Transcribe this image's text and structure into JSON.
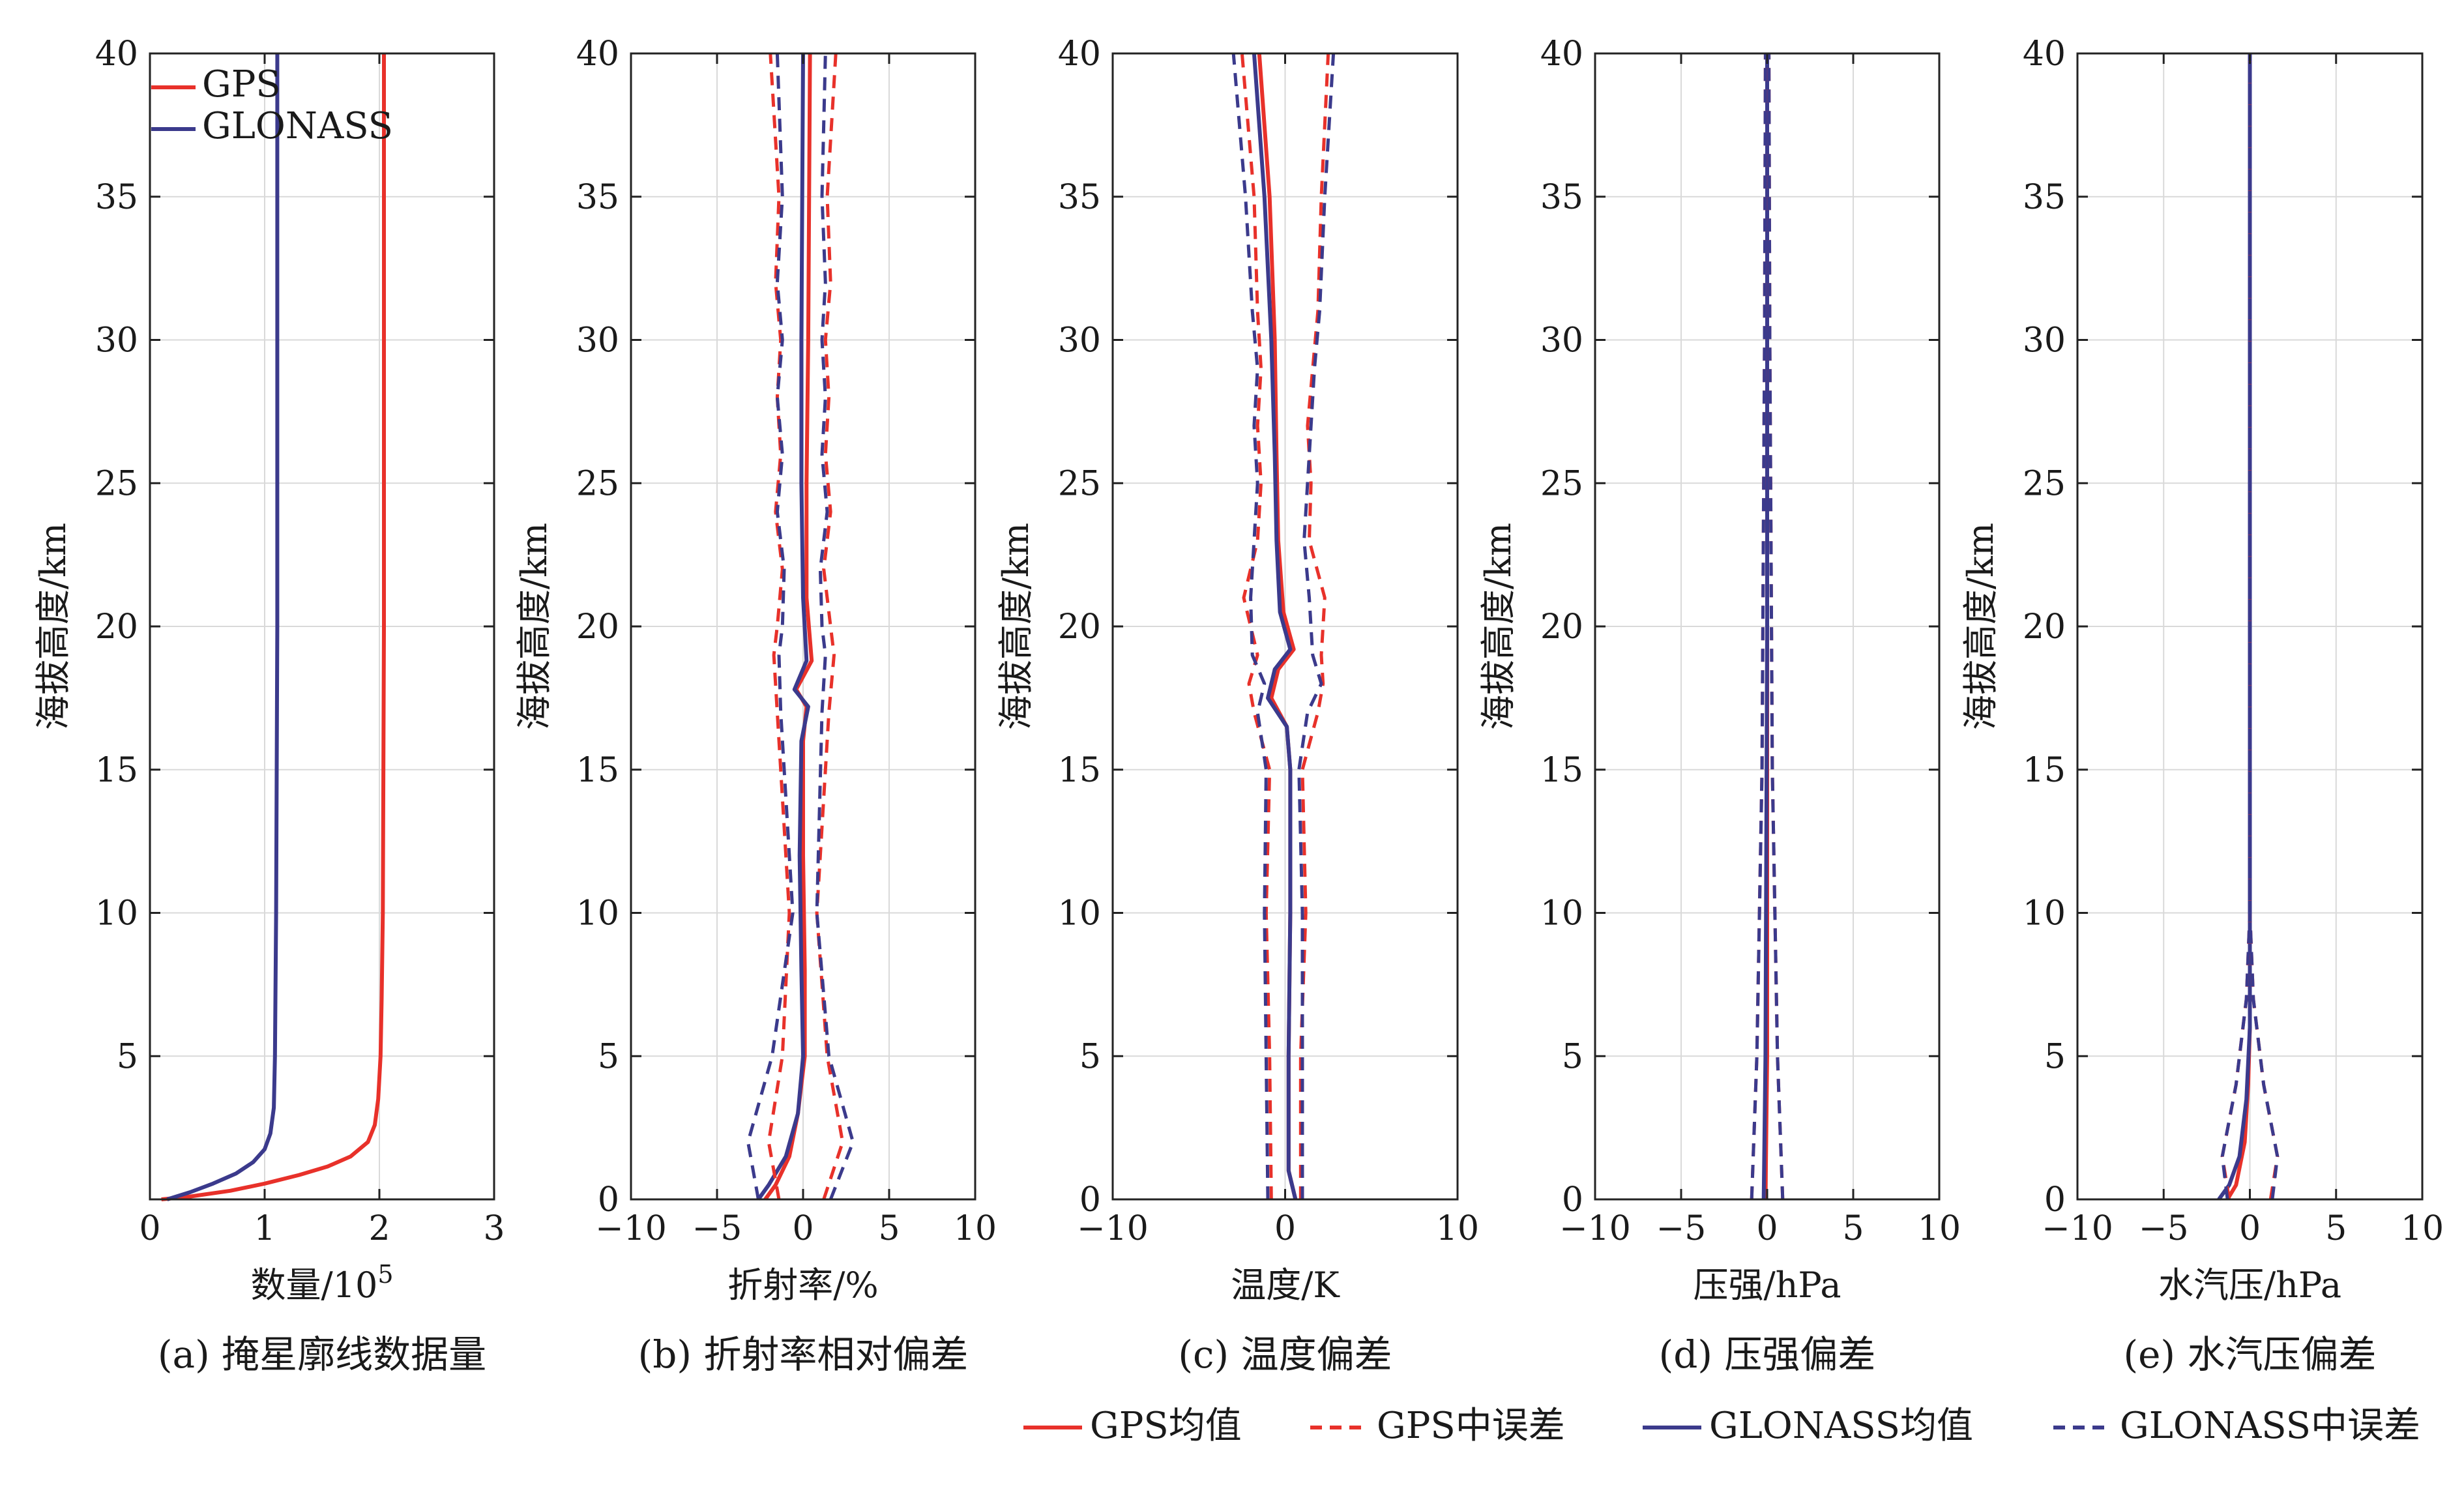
{
  "figure": {
    "colors": {
      "gps": "#e8312a",
      "glonass": "#3b3a8c"
    }
  },
  "legend": {
    "items": [
      {
        "label": "GPS均值",
        "series": "gps",
        "dash": false
      },
      {
        "label": "GPS中误差",
        "series": "gps",
        "dash": true
      },
      {
        "label": "GLONASS均值",
        "series": "glonass",
        "dash": false
      },
      {
        "label": "GLONASS中误差",
        "series": "glonass",
        "dash": true
      }
    ]
  },
  "chart_data": [
    {
      "id": "a",
      "type": "line",
      "caption": "(a) 掩星廓线数据量",
      "xlabel": "数量/10",
      "xlabel_sup": "5",
      "ylabel": "海拔高度/km",
      "xlim": [
        0,
        3
      ],
      "ylim": [
        0,
        40
      ],
      "xticks": [
        0,
        1,
        2,
        3
      ],
      "yticks": [
        5,
        10,
        15,
        20,
        25,
        30,
        35,
        40
      ],
      "inner_legend": [
        "GPS",
        "GLONASS"
      ],
      "series": [
        {
          "name": "GPS",
          "color_key": "gps",
          "dash": false,
          "x": [
            0.1,
            0.35,
            0.7,
            1.0,
            1.3,
            1.55,
            1.75,
            1.9,
            1.96,
            1.99,
            2.01,
            2.02,
            2.03,
            2.04,
            2.04
          ],
          "y": [
            0,
            0.1,
            0.3,
            0.55,
            0.85,
            1.15,
            1.5,
            2.0,
            2.6,
            3.5,
            5,
            7,
            10,
            20,
            40
          ]
        },
        {
          "name": "GLONASS",
          "color_key": "glonass",
          "dash": false,
          "x": [
            0.15,
            0.35,
            0.55,
            0.75,
            0.9,
            1.0,
            1.05,
            1.08,
            1.09,
            1.1,
            1.11,
            1.11
          ],
          "y": [
            0,
            0.25,
            0.55,
            0.9,
            1.3,
            1.75,
            2.3,
            3.2,
            5,
            10,
            20,
            40
          ]
        }
      ]
    },
    {
      "id": "b",
      "type": "line",
      "caption": "(b) 折射率相对偏差",
      "xlabel": "折射率/%",
      "ylabel": "海拔高度/km",
      "xlim": [
        -10,
        10
      ],
      "ylim": [
        0,
        40
      ],
      "xticks": [
        -10,
        -5,
        0,
        5,
        10
      ],
      "yticks": [
        0,
        5,
        10,
        15,
        20,
        25,
        30,
        35,
        40
      ],
      "series": [
        {
          "name": "GPS均值",
          "color_key": "gps",
          "dash": false,
          "x": [
            -2.2,
            -1.6,
            -0.8,
            -0.3,
            0.1,
            0.1,
            0,
            0,
            0.2,
            -0.4,
            0.5,
            0.2,
            0.2,
            0.3,
            0.4
          ],
          "y": [
            0,
            0.5,
            1.5,
            3,
            5,
            8,
            12,
            16,
            17.2,
            17.8,
            18.8,
            21,
            25,
            30,
            40
          ]
        },
        {
          "name": "GLONASS均值",
          "color_key": "glonass",
          "dash": false,
          "x": [
            -2.6,
            -2.0,
            -1.0,
            -0.3,
            0,
            -0.1,
            -0.2,
            -0.1,
            0.3,
            -0.5,
            0.2,
            0,
            -0.1,
            -0.1,
            0
          ],
          "y": [
            0,
            0.5,
            1.5,
            3,
            5,
            8,
            12,
            16,
            17.2,
            17.8,
            18.8,
            21,
            25,
            30,
            40
          ]
        },
        {
          "name": "GPS中误差",
          "color_key": "gps",
          "dash": true,
          "x": [
            -1.4,
            -2.0,
            -1.2,
            -0.8,
            -1.5,
            -1.7,
            -1.5,
            -1.2,
            -1.6,
            -1.3,
            -1.5,
            -1.3,
            -1.6,
            -1.4,
            -1.9
          ],
          "y": [
            0,
            2,
            5,
            10,
            17,
            19,
            20,
            22,
            24,
            26,
            28,
            30,
            32,
            35,
            40
          ]
        },
        {
          "name": "GPS中误差",
          "color_key": "gps",
          "dash": true,
          "x": [
            1.2,
            2.3,
            1.4,
            0.8,
            1.5,
            1.8,
            1.6,
            1.2,
            1.6,
            1.3,
            1.5,
            1.3,
            1.6,
            1.4,
            1.9
          ],
          "y": [
            0,
            2,
            5,
            10,
            17,
            19,
            20,
            22,
            24,
            26,
            28,
            30,
            32,
            35,
            40
          ]
        },
        {
          "name": "GLONASS中误差",
          "color_key": "glonass",
          "dash": true,
          "x": [
            -2.6,
            -3.2,
            -1.8,
            -0.6,
            -1.3,
            -1.4,
            -1.2,
            -1.1,
            -1.5,
            -1.2,
            -1.5,
            -1.2,
            -1.5,
            -1.2,
            -1.5
          ],
          "y": [
            0,
            2,
            5,
            10,
            17,
            19,
            20,
            22,
            24,
            26,
            28,
            30,
            32,
            35,
            40
          ]
        },
        {
          "name": "GLONASS中误差",
          "color_key": "glonass",
          "dash": true,
          "x": [
            1.6,
            2.9,
            1.5,
            0.8,
            1.1,
            1.3,
            1.1,
            1.0,
            1.4,
            1.1,
            1.3,
            1.1,
            1.3,
            1.1,
            1.3
          ],
          "y": [
            0,
            2,
            5,
            10,
            17,
            19,
            20,
            22,
            24,
            26,
            28,
            30,
            32,
            35,
            40
          ]
        }
      ]
    },
    {
      "id": "c",
      "type": "line",
      "caption": "(c) 温度偏差",
      "xlabel": "温度/K",
      "ylabel": "海拔高度/km",
      "xlim": [
        -10,
        10
      ],
      "ylim": [
        0,
        40
      ],
      "xticks": [
        -10,
        0,
        10
      ],
      "yticks": [
        0,
        5,
        10,
        15,
        20,
        25,
        30,
        35,
        40
      ],
      "series": [
        {
          "name": "GPS均值",
          "color_key": "gps",
          "dash": false,
          "x": [
            0.6,
            0.2,
            0.2,
            0.3,
            0.3,
            0.1,
            -0.8,
            -0.4,
            0.5,
            -0.1,
            -0.4,
            -0.5,
            -0.6,
            -0.9,
            -1.5
          ],
          "y": [
            0,
            1,
            5,
            10,
            15,
            16.5,
            17.5,
            18.5,
            19.2,
            20.5,
            23,
            26,
            30,
            35,
            40
          ]
        },
        {
          "name": "GLONASS均值",
          "color_key": "glonass",
          "dash": false,
          "x": [
            0.6,
            0.2,
            0.2,
            0.3,
            0.3,
            0.1,
            -1.0,
            -0.6,
            0.3,
            -0.3,
            -0.5,
            -0.6,
            -0.8,
            -1.2,
            -1.8
          ],
          "y": [
            0,
            1,
            5,
            10,
            15,
            16.5,
            17.5,
            18.5,
            19.2,
            20.5,
            23,
            26,
            30,
            35,
            40
          ]
        },
        {
          "name": "GPS中误差",
          "color_key": "gps",
          "dash": true,
          "x": [
            -0.8,
            -0.9,
            -1.1,
            -0.9,
            -1.8,
            -2.1,
            -1.6,
            -2.4,
            -1.6,
            -1.4,
            -1.6,
            -1.4,
            -1.6,
            -1.8,
            -2.5
          ],
          "y": [
            0,
            5,
            10,
            15,
            17,
            18,
            19,
            21,
            23,
            25,
            27,
            29,
            31,
            35,
            40
          ]
        },
        {
          "name": "GPS中误差",
          "color_key": "gps",
          "dash": true,
          "x": [
            0.9,
            0.9,
            1.2,
            1.0,
            1.9,
            2.2,
            2.1,
            2.3,
            1.4,
            1.5,
            1.3,
            1.6,
            1.9,
            2.1,
            2.5
          ],
          "y": [
            0,
            5,
            10,
            15,
            17,
            18,
            19,
            21,
            23,
            25,
            27,
            29,
            31,
            35,
            40
          ]
        },
        {
          "name": "GLONASS中误差",
          "color_key": "glonass",
          "dash": true,
          "x": [
            -1.0,
            -1.1,
            -1.2,
            -1.1,
            -1.6,
            -1.2,
            -1.9,
            -2.0,
            -1.8,
            -1.6,
            -1.8,
            -1.6,
            -1.9,
            -2.3,
            -3.0
          ],
          "y": [
            0,
            5,
            10,
            15,
            17,
            18,
            19,
            21,
            23,
            25,
            27,
            29,
            31,
            35,
            40
          ]
        },
        {
          "name": "GLONASS中误差",
          "color_key": "glonass",
          "dash": true,
          "x": [
            1.0,
            1.0,
            1.0,
            0.8,
            1.3,
            2.1,
            1.6,
            1.4,
            1.1,
            1.3,
            1.5,
            1.7,
            2.0,
            2.3,
            2.8
          ],
          "y": [
            0,
            5,
            10,
            15,
            17,
            18,
            19,
            21,
            23,
            25,
            27,
            29,
            31,
            35,
            40
          ]
        }
      ]
    },
    {
      "id": "d",
      "type": "line",
      "caption": "(d) 压强偏差",
      "xlabel": "压强/hPa",
      "ylabel": "海拔高度/km",
      "xlim": [
        -10,
        10
      ],
      "ylim": [
        0,
        40
      ],
      "xticks": [
        -10,
        -5,
        0,
        5,
        10
      ],
      "yticks": [
        0,
        5,
        10,
        15,
        20,
        25,
        30,
        35,
        40
      ],
      "series": [
        {
          "name": "GPS均值",
          "color_key": "gps",
          "dash": false,
          "x": [
            -0.1,
            0,
            0,
            0
          ],
          "y": [
            0,
            5,
            20,
            40
          ]
        },
        {
          "name": "GLONASS均值",
          "color_key": "glonass",
          "dash": false,
          "x": [
            -0.2,
            -0.1,
            0,
            0
          ],
          "y": [
            0,
            5,
            20,
            40
          ]
        },
        {
          "name": "GPS中误差",
          "color_key": "gps",
          "dash": true,
          "x": [
            -0.9,
            -0.6,
            -0.3,
            -0.15,
            -0.1
          ],
          "y": [
            0,
            5,
            15,
            30,
            40
          ]
        },
        {
          "name": "GPS中误差",
          "color_key": "gps",
          "dash": true,
          "x": [
            0.9,
            0.6,
            0.3,
            0.15,
            0.1
          ],
          "y": [
            0,
            5,
            15,
            30,
            40
          ]
        },
        {
          "name": "GLONASS中误差",
          "color_key": "glonass",
          "dash": true,
          "x": [
            -0.9,
            -0.6,
            -0.3,
            -0.15,
            -0.1
          ],
          "y": [
            0,
            5,
            15,
            30,
            40
          ]
        },
        {
          "name": "GLONASS中误差",
          "color_key": "glonass",
          "dash": true,
          "x": [
            0.9,
            0.6,
            0.3,
            0.15,
            0.1
          ],
          "y": [
            0,
            5,
            15,
            30,
            40
          ]
        }
      ]
    },
    {
      "id": "e",
      "type": "line",
      "caption": "(e) 水汽压偏差",
      "xlabel": "水汽压/hPa",
      "ylabel": "海拔高度/km",
      "xlim": [
        -10,
        10
      ],
      "ylim": [
        0,
        40
      ],
      "xticks": [
        -10,
        -5,
        0,
        5,
        10
      ],
      "yticks": [
        0,
        5,
        10,
        15,
        20,
        25,
        30,
        35,
        40
      ],
      "series": [
        {
          "name": "GPS均值",
          "color_key": "gps",
          "dash": false,
          "x": [
            -1.3,
            -0.8,
            -0.3,
            -0.1,
            0,
            0
          ],
          "y": [
            0,
            0.5,
            2,
            4,
            6,
            40
          ]
        },
        {
          "name": "GLONASS均值",
          "color_key": "glonass",
          "dash": false,
          "x": [
            -1.8,
            -1.2,
            -0.6,
            -0.2,
            0,
            0
          ],
          "y": [
            0,
            0.5,
            1.5,
            3.5,
            6,
            40
          ]
        },
        {
          "name": "GPS中误差",
          "color_key": "gps",
          "dash": true,
          "x": [
            -1.2,
            -1.6,
            -0.8,
            -0.2,
            0,
            0
          ],
          "y": [
            0,
            1.5,
            4,
            7,
            10,
            40
          ]
        },
        {
          "name": "GPS中误差",
          "color_key": "gps",
          "dash": true,
          "x": [
            1.2,
            1.6,
            0.8,
            0.2,
            0,
            0
          ],
          "y": [
            0,
            1.5,
            4,
            7,
            10,
            40
          ]
        },
        {
          "name": "GLONASS中误差",
          "color_key": "glonass",
          "dash": true,
          "x": [
            -1.3,
            -1.6,
            -0.8,
            -0.2,
            0,
            0
          ],
          "y": [
            0,
            1.5,
            4,
            7,
            10,
            40
          ]
        },
        {
          "name": "GLONASS中误差",
          "color_key": "glonass",
          "dash": true,
          "x": [
            1.3,
            1.6,
            0.8,
            0.2,
            0,
            0
          ],
          "y": [
            0,
            1.5,
            4,
            7,
            10,
            40
          ]
        }
      ]
    }
  ]
}
